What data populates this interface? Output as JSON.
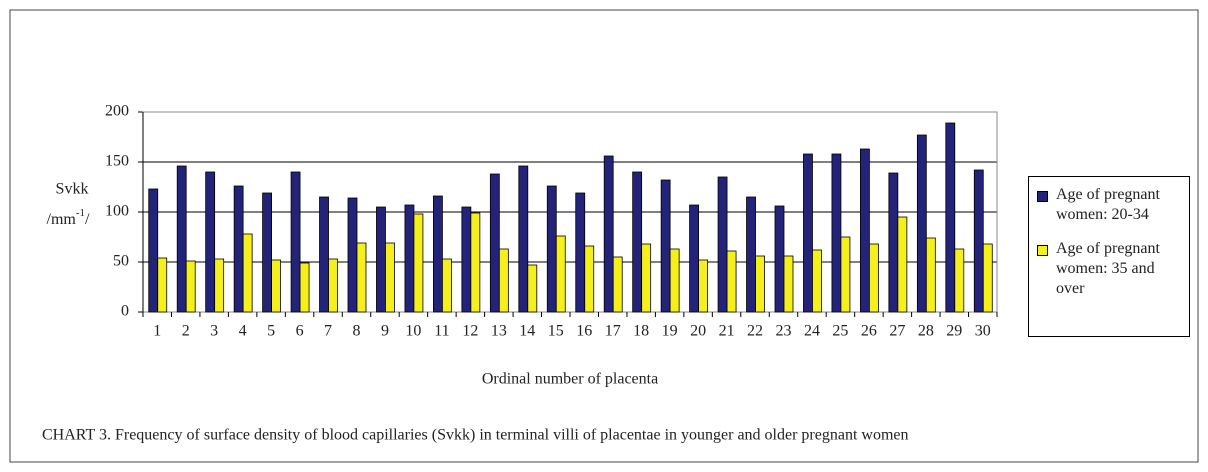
{
  "chart_data": {
    "type": "bar",
    "ylabel": "Svkk",
    "ylabel_unit": {
      "base": "/mm",
      "sup": "-1",
      "end": "/"
    },
    "xlabel": "Ordinal number of placenta",
    "caption": "CHART 3.  Frequency of surface density of blood capillaries (Svkk) in terminal villi of placentae in younger and older pregnant women",
    "categories": [
      "1",
      "2",
      "3",
      "4",
      "5",
      "6",
      "7",
      "8",
      "9",
      "10",
      "11",
      "12",
      "13",
      "14",
      "15",
      "16",
      "17",
      "18",
      "19",
      "20",
      "21",
      "22",
      "23",
      "24",
      "25",
      "26",
      "27",
      "28",
      "29",
      "30"
    ],
    "series": [
      {
        "name": "Age of pregnant women: 20-34",
        "color": "#23237a",
        "values": [
          123,
          146,
          140,
          126,
          119,
          140,
          115,
          114,
          105,
          107,
          116,
          105,
          138,
          146,
          126,
          119,
          156,
          140,
          132,
          107,
          135,
          115,
          106,
          158,
          158,
          163,
          139,
          177,
          189,
          142
        ]
      },
      {
        "name": "Age of pregnant women: 35 and over",
        "color": "#f5f01c",
        "values": [
          54,
          51,
          53,
          78,
          52,
          49,
          53,
          69,
          69,
          98,
          53,
          99,
          63,
          47,
          76,
          66,
          55,
          68,
          63,
          52,
          61,
          56,
          56,
          62,
          75,
          68,
          95,
          74,
          63,
          68
        ]
      }
    ],
    "ylim": [
      0,
      200
    ],
    "yticks": [
      0,
      50,
      100,
      150,
      200
    ],
    "grid": true,
    "legend": "right"
  }
}
